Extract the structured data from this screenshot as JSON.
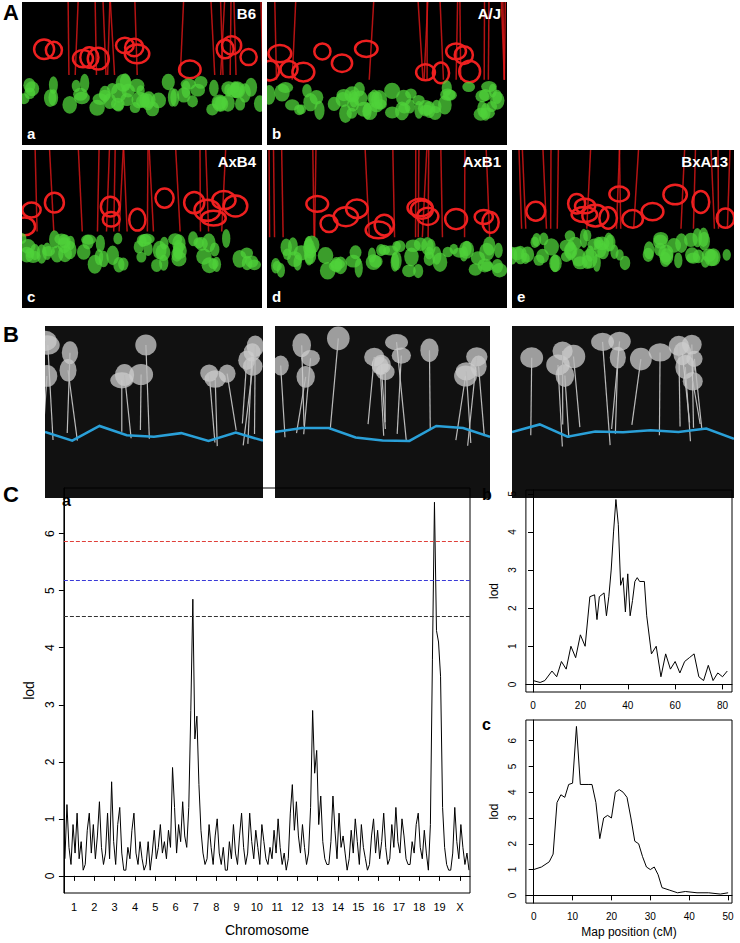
{
  "panels": {
    "A": {
      "label": "A",
      "images": [
        {
          "label": "B6",
          "sub": "a"
        },
        {
          "label": "A/J",
          "sub": "b"
        },
        {
          "label": "AxB4",
          "sub": "c"
        },
        {
          "label": "AxB1",
          "sub": "d"
        },
        {
          "label": "BxA13",
          "sub": "e"
        }
      ]
    },
    "B": {
      "label": "B",
      "image_count": 3
    },
    "C": {
      "label": "C"
    }
  },
  "chart_data": [
    {
      "type": "line",
      "panel": "a",
      "color": "#000000",
      "line_style": "solid",
      "grid": false,
      "xlabel": "Chromosome",
      "ylabel": "lod",
      "xlim": [
        0,
        20
      ],
      "ylim": [
        -0.3,
        6.8
      ],
      "xticks": [
        {
          "value": 0.5,
          "label": "1"
        },
        {
          "value": 1.5,
          "label": "2"
        },
        {
          "value": 2.5,
          "label": "3"
        },
        {
          "value": 3.5,
          "label": "4"
        },
        {
          "value": 4.5,
          "label": "5"
        },
        {
          "value": 5.5,
          "label": "6"
        },
        {
          "value": 6.5,
          "label": "7"
        },
        {
          "value": 7.5,
          "label": "8"
        },
        {
          "value": 8.5,
          "label": "9"
        },
        {
          "value": 9.5,
          "label": "10"
        },
        {
          "value": 10.5,
          "label": "11"
        },
        {
          "value": 11.5,
          "label": "12"
        },
        {
          "value": 12.5,
          "label": "13"
        },
        {
          "value": 13.5,
          "label": "14"
        },
        {
          "value": 14.5,
          "label": "15"
        },
        {
          "value": 15.5,
          "label": "16"
        },
        {
          "value": 16.5,
          "label": "17"
        },
        {
          "value": 17.5,
          "label": "18"
        },
        {
          "value": 18.5,
          "label": "19"
        },
        {
          "value": 19.5,
          "label": "X"
        }
      ],
      "yticks": [
        0,
        1,
        2,
        3,
        4,
        5,
        6
      ],
      "thresholds": [
        {
          "value": 5.87,
          "color": "#e0403a",
          "line_style": "dashed"
        },
        {
          "value": 5.18,
          "color": "#3a3ad8",
          "line_style": "dashed"
        },
        {
          "value": 4.55,
          "color": "#333333",
          "line_style": "dashed"
        }
      ],
      "x": [
        0.05,
        0.15,
        0.25,
        0.35,
        0.45,
        0.55,
        0.65,
        0.75,
        0.85,
        0.95,
        1.05,
        1.15,
        1.25,
        1.35,
        1.45,
        1.55,
        1.65,
        1.75,
        1.85,
        1.95,
        2.05,
        2.15,
        2.25,
        2.35,
        2.45,
        2.55,
        2.65,
        2.75,
        2.85,
        2.95,
        3.05,
        3.15,
        3.25,
        3.35,
        3.45,
        3.55,
        3.65,
        3.75,
        3.85,
        3.95,
        4.05,
        4.15,
        4.25,
        4.35,
        4.45,
        4.55,
        4.65,
        4.75,
        4.85,
        4.95,
        5.05,
        5.15,
        5.25,
        5.35,
        5.45,
        5.55,
        5.65,
        5.75,
        5.85,
        5.95,
        6.05,
        6.15,
        6.25,
        6.35,
        6.45,
        6.55,
        6.65,
        6.75,
        6.85,
        6.95,
        7.05,
        7.15,
        7.25,
        7.35,
        7.45,
        7.55,
        7.65,
        7.75,
        7.85,
        7.95,
        8.05,
        8.15,
        8.25,
        8.35,
        8.45,
        8.55,
        8.65,
        8.75,
        8.85,
        8.95,
        9.05,
        9.15,
        9.25,
        9.35,
        9.45,
        9.55,
        9.65,
        9.75,
        9.85,
        9.95,
        10.05,
        10.15,
        10.25,
        10.35,
        10.45,
        10.55,
        10.65,
        10.75,
        10.85,
        10.95,
        11.05,
        11.15,
        11.25,
        11.35,
        11.45,
        11.55,
        11.65,
        11.75,
        11.85,
        11.95,
        12.05,
        12.15,
        12.25,
        12.35,
        12.45,
        12.55,
        12.65,
        12.75,
        12.85,
        12.95,
        13.05,
        13.15,
        13.25,
        13.35,
        13.45,
        13.55,
        13.65,
        13.75,
        13.85,
        13.95,
        14.05,
        14.15,
        14.25,
        14.35,
        14.45,
        14.55,
        14.65,
        14.75,
        14.85,
        14.95,
        15.05,
        15.15,
        15.25,
        15.35,
        15.45,
        15.55,
        15.65,
        15.75,
        15.85,
        15.95,
        16.05,
        16.15,
        16.25,
        16.35,
        16.45,
        16.55,
        16.65,
        16.75,
        16.85,
        16.95,
        17.05,
        17.15,
        17.25,
        17.35,
        17.45,
        17.55,
        17.65,
        17.75,
        17.85,
        17.95,
        18.05,
        18.15,
        18.25,
        18.35,
        18.45,
        18.55,
        18.65,
        18.75,
        18.85,
        18.95,
        19.05,
        19.15,
        19.25,
        19.35,
        19.45,
        19.55,
        19.65,
        19.75,
        19.85,
        19.95
      ],
      "values": [
        0.3,
        1.25,
        0.5,
        0.2,
        0.9,
        0.4,
        1.1,
        0.3,
        0.6,
        0.1,
        0.2,
        0.8,
        1.1,
        0.4,
        0.9,
        0.3,
        0.7,
        1.3,
        0.5,
        0.2,
        0.4,
        1.1,
        0.3,
        1.65,
        0.6,
        0.2,
        0.9,
        1.2,
        0.4,
        0.1,
        0.1,
        0.5,
        0.3,
        0.8,
        1.1,
        0.4,
        0.2,
        0.6,
        0.3,
        0.1,
        0.2,
        0.6,
        0.1,
        0.4,
        0.8,
        0.3,
        0.5,
        0.9,
        0.4,
        0.6,
        0.3,
        0.8,
        0.5,
        1.9,
        1.2,
        0.4,
        0.9,
        0.6,
        1.3,
        0.7,
        0.5,
        1.2,
        2.9,
        4.85,
        2.4,
        2.8,
        1.6,
        0.8,
        0.4,
        0.2,
        0.3,
        0.9,
        0.5,
        0.2,
        0.7,
        1.0,
        0.4,
        0.2,
        0.5,
        0.1,
        0.1,
        0.6,
        0.3,
        0.9,
        0.4,
        0.2,
        0.7,
        1.1,
        0.5,
        0.2,
        0.4,
        1.1,
        0.6,
        0.3,
        0.8,
        0.5,
        0.2,
        0.9,
        0.6,
        0.3,
        0.2,
        0.5,
        0.3,
        0.8,
        0.4,
        1.0,
        0.5,
        0.2,
        0.4,
        0.1,
        0.3,
        1.1,
        1.6,
        0.8,
        1.3,
        0.7,
        0.4,
        0.9,
        0.5,
        0.2,
        0.4,
        1.2,
        2.9,
        1.8,
        2.2,
        0.9,
        1.4,
        0.6,
        0.3,
        0.2,
        0.2,
        0.6,
        1.4,
        0.8,
        0.3,
        1.1,
        0.5,
        0.7,
        0.4,
        0.1,
        0.3,
        0.8,
        0.4,
        1.0,
        0.6,
        0.2,
        0.9,
        0.5,
        0.3,
        0.1,
        0.2,
        0.7,
        1.0,
        0.4,
        0.8,
        0.3,
        0.6,
        1.1,
        0.5,
        0.2,
        0.3,
        0.9,
        0.5,
        1.2,
        0.6,
        0.4,
        1.0,
        0.7,
        0.3,
        0.2,
        0.2,
        0.6,
        0.4,
        0.9,
        1.1,
        0.5,
        0.3,
        0.8,
        0.4,
        0.1,
        0.9,
        3.8,
        6.55,
        4.3,
        4.1,
        3.5,
        1.2,
        0.5,
        0.2,
        0.1,
        0.1,
        0.4,
        1.2,
        0.6,
        0.3,
        0.9,
        0.5,
        0.2,
        0.4,
        0.1
      ]
    },
    {
      "type": "line",
      "panel": "b",
      "color": "#000000",
      "line_style": "solid",
      "grid": false,
      "ylabel": "lod",
      "xlim": [
        -3,
        84
      ],
      "ylim": [
        -0.2,
        5.1
      ],
      "xticks": [
        0,
        20,
        40,
        60,
        80
      ],
      "yticks": [
        0,
        1,
        2,
        3,
        4,
        5
      ],
      "x": [
        0,
        3,
        5,
        8,
        10,
        12,
        14,
        16,
        18,
        20,
        22,
        24,
        26,
        27,
        28,
        30,
        31,
        32,
        33,
        34,
        35,
        36,
        37,
        38,
        39,
        40,
        41,
        42,
        43,
        44,
        45,
        47,
        48,
        50,
        52,
        54,
        56,
        58,
        60,
        62,
        64,
        66,
        68,
        70,
        72,
        74,
        76,
        78,
        80,
        82
      ],
      "values": [
        0.1,
        0.05,
        0.1,
        0.35,
        0.2,
        0.6,
        0.4,
        1.0,
        0.7,
        1.3,
        1.0,
        2.3,
        2.35,
        1.7,
        2.3,
        2.4,
        1.8,
        2.3,
        3.0,
        4.0,
        4.85,
        4.2,
        2.6,
        2.8,
        1.9,
        2.9,
        1.8,
        2.2,
        2.7,
        2.8,
        2.7,
        2.7,
        1.8,
        0.8,
        1.0,
        0.2,
        0.8,
        0.4,
        0.6,
        0.3,
        0.6,
        0.7,
        0.8,
        0.2,
        0.1,
        0.5,
        0.1,
        0.3,
        0.2,
        0.35
      ]
    },
    {
      "type": "line",
      "panel": "c",
      "color": "#000000",
      "line_style": "solid",
      "grid": false,
      "xlabel": "Map position (cM)",
      "ylabel": "lod",
      "xlim": [
        -2,
        51
      ],
      "ylim": [
        -0.3,
        6.8
      ],
      "xticks": [
        0,
        10,
        20,
        30,
        40,
        50
      ],
      "yticks": [
        0,
        1,
        2,
        3,
        4,
        5,
        6
      ],
      "x": [
        0,
        2,
        4,
        5,
        6,
        7,
        8,
        9,
        10,
        11,
        12,
        14,
        15,
        16,
        17,
        18,
        19,
        20,
        21,
        22,
        23,
        24,
        25,
        26,
        27,
        28,
        29,
        30,
        31,
        32,
        33,
        35,
        37,
        39,
        42,
        45,
        48,
        50
      ],
      "values": [
        1.0,
        1.1,
        1.3,
        1.6,
        3.6,
        3.9,
        3.8,
        4.3,
        4.35,
        6.55,
        4.3,
        4.3,
        4.3,
        3.6,
        2.2,
        3.0,
        3.1,
        3.0,
        4.0,
        4.1,
        4.0,
        3.8,
        3.0,
        2.1,
        2.0,
        1.5,
        1.1,
        1.0,
        1.1,
        0.8,
        0.3,
        0.2,
        0.1,
        0.15,
        0.1,
        0.1,
        0.05,
        0.1
      ]
    }
  ]
}
